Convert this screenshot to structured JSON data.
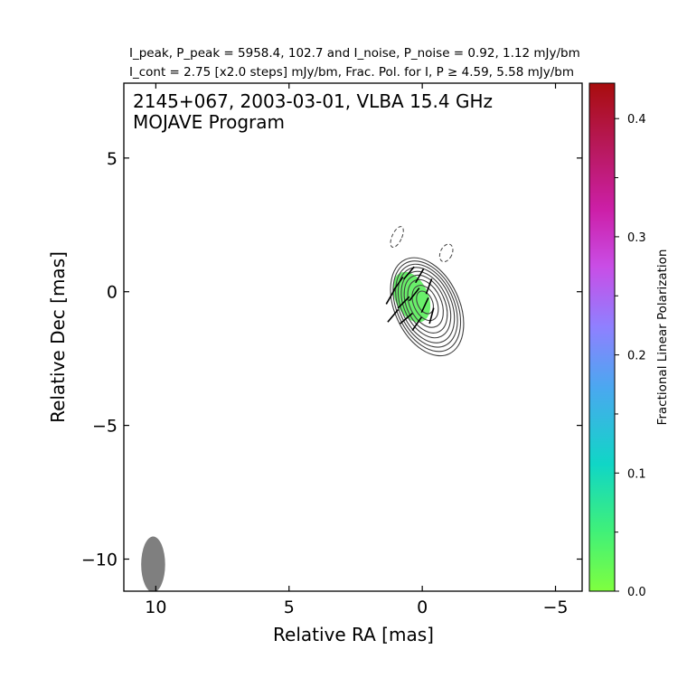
{
  "header": {
    "line1": "I_peak, P_peak = 5958.4, 102.7 and I_noise, P_noise = 0.92, 1.12 mJy/bm",
    "line2": "I_cont = 2.75 [x2.0 steps] mJy/bm, Frac. Pol. for I, P ≥ 4.59, 5.58 mJy/bm"
  },
  "chart_data": {
    "type": "contour",
    "title": "2145+067, 2003-03-01, VLBA 15.4 GHz",
    "subtitle": "MOJAVE Program",
    "xlabel": "Relative RA [mas]",
    "ylabel": "Relative Dec [mas]",
    "xlim": [
      11.2,
      -6.0
    ],
    "ylim": [
      -11.2,
      7.8
    ],
    "xticks": [
      10,
      5,
      0,
      -5
    ],
    "xtick_labels": [
      "10",
      "5",
      "0",
      "−5"
    ],
    "yticks": [
      5,
      0,
      -5,
      -10
    ],
    "ytick_labels": [
      "5",
      "0",
      "−5",
      "−10"
    ],
    "colorbar": {
      "label": "Fractional Linear Polarization",
      "range": [
        0.0,
        0.43
      ],
      "ticks": [
        0.0,
        0.1,
        0.2,
        0.3,
        0.4
      ],
      "tick_labels": [
        "0.0",
        "0.1",
        "0.2",
        "0.3",
        "0.4"
      ],
      "colors": [
        "#7fff3f",
        "#39f07a",
        "#10d6c6",
        "#4aa8f0",
        "#8f80ff",
        "#c94de6",
        "#cc1fa8",
        "#b8195e",
        "#a80d0d"
      ]
    },
    "source": {
      "center_ra": -0.1,
      "center_dec": -0.4,
      "contour_count": 9,
      "contour_semi_major_mas": [
        0.45,
        0.7,
        0.95,
        1.15,
        1.32,
        1.5,
        1.65,
        1.8,
        1.95
      ],
      "contour_axis_ratio": 0.62,
      "position_angle_deg": -25,
      "contour_color": "#404040",
      "negative_contours": [
        {
          "ra": 0.95,
          "dec": 2.05,
          "semi_major": 0.42,
          "semi_minor": 0.18
        },
        {
          "ra": -0.9,
          "dec": 1.45,
          "semi_major": 0.35,
          "semi_minor": 0.22
        }
      ],
      "polarization_fill_color": "#69f06a",
      "polarization_region": {
        "ra": 0.4,
        "dec": -0.2,
        "semi_major": 1.0,
        "semi_minor": 0.62
      },
      "evpa_ticks": [
        {
          "ra": 0.9,
          "dec": 0.3,
          "angle": 35
        },
        {
          "ra": 0.5,
          "dec": 0.7,
          "angle": 40
        },
        {
          "ra": 0.1,
          "dec": 0.6,
          "angle": 30
        },
        {
          "ra": -0.25,
          "dec": 0.2,
          "angle": 20
        },
        {
          "ra": 0.7,
          "dec": -0.4,
          "angle": 45
        },
        {
          "ra": 0.3,
          "dec": -0.1,
          "angle": 38
        },
        {
          "ra": -0.1,
          "dec": -0.5,
          "angle": 25
        },
        {
          "ra": 0.6,
          "dec": -1.0,
          "angle": 50
        },
        {
          "ra": 0.2,
          "dec": -1.2,
          "angle": 35
        },
        {
          "ra": 1.1,
          "dec": -0.9,
          "angle": 40
        },
        {
          "ra": -0.35,
          "dec": -0.9,
          "angle": 15
        },
        {
          "ra": 1.2,
          "dec": -0.2,
          "angle": 30
        }
      ]
    },
    "beam": {
      "ra": 10.1,
      "dec": -10.2,
      "major_mas": 1.05,
      "minor_mas": 0.45,
      "pa_deg": 0,
      "color": "#7f7f7f"
    }
  }
}
